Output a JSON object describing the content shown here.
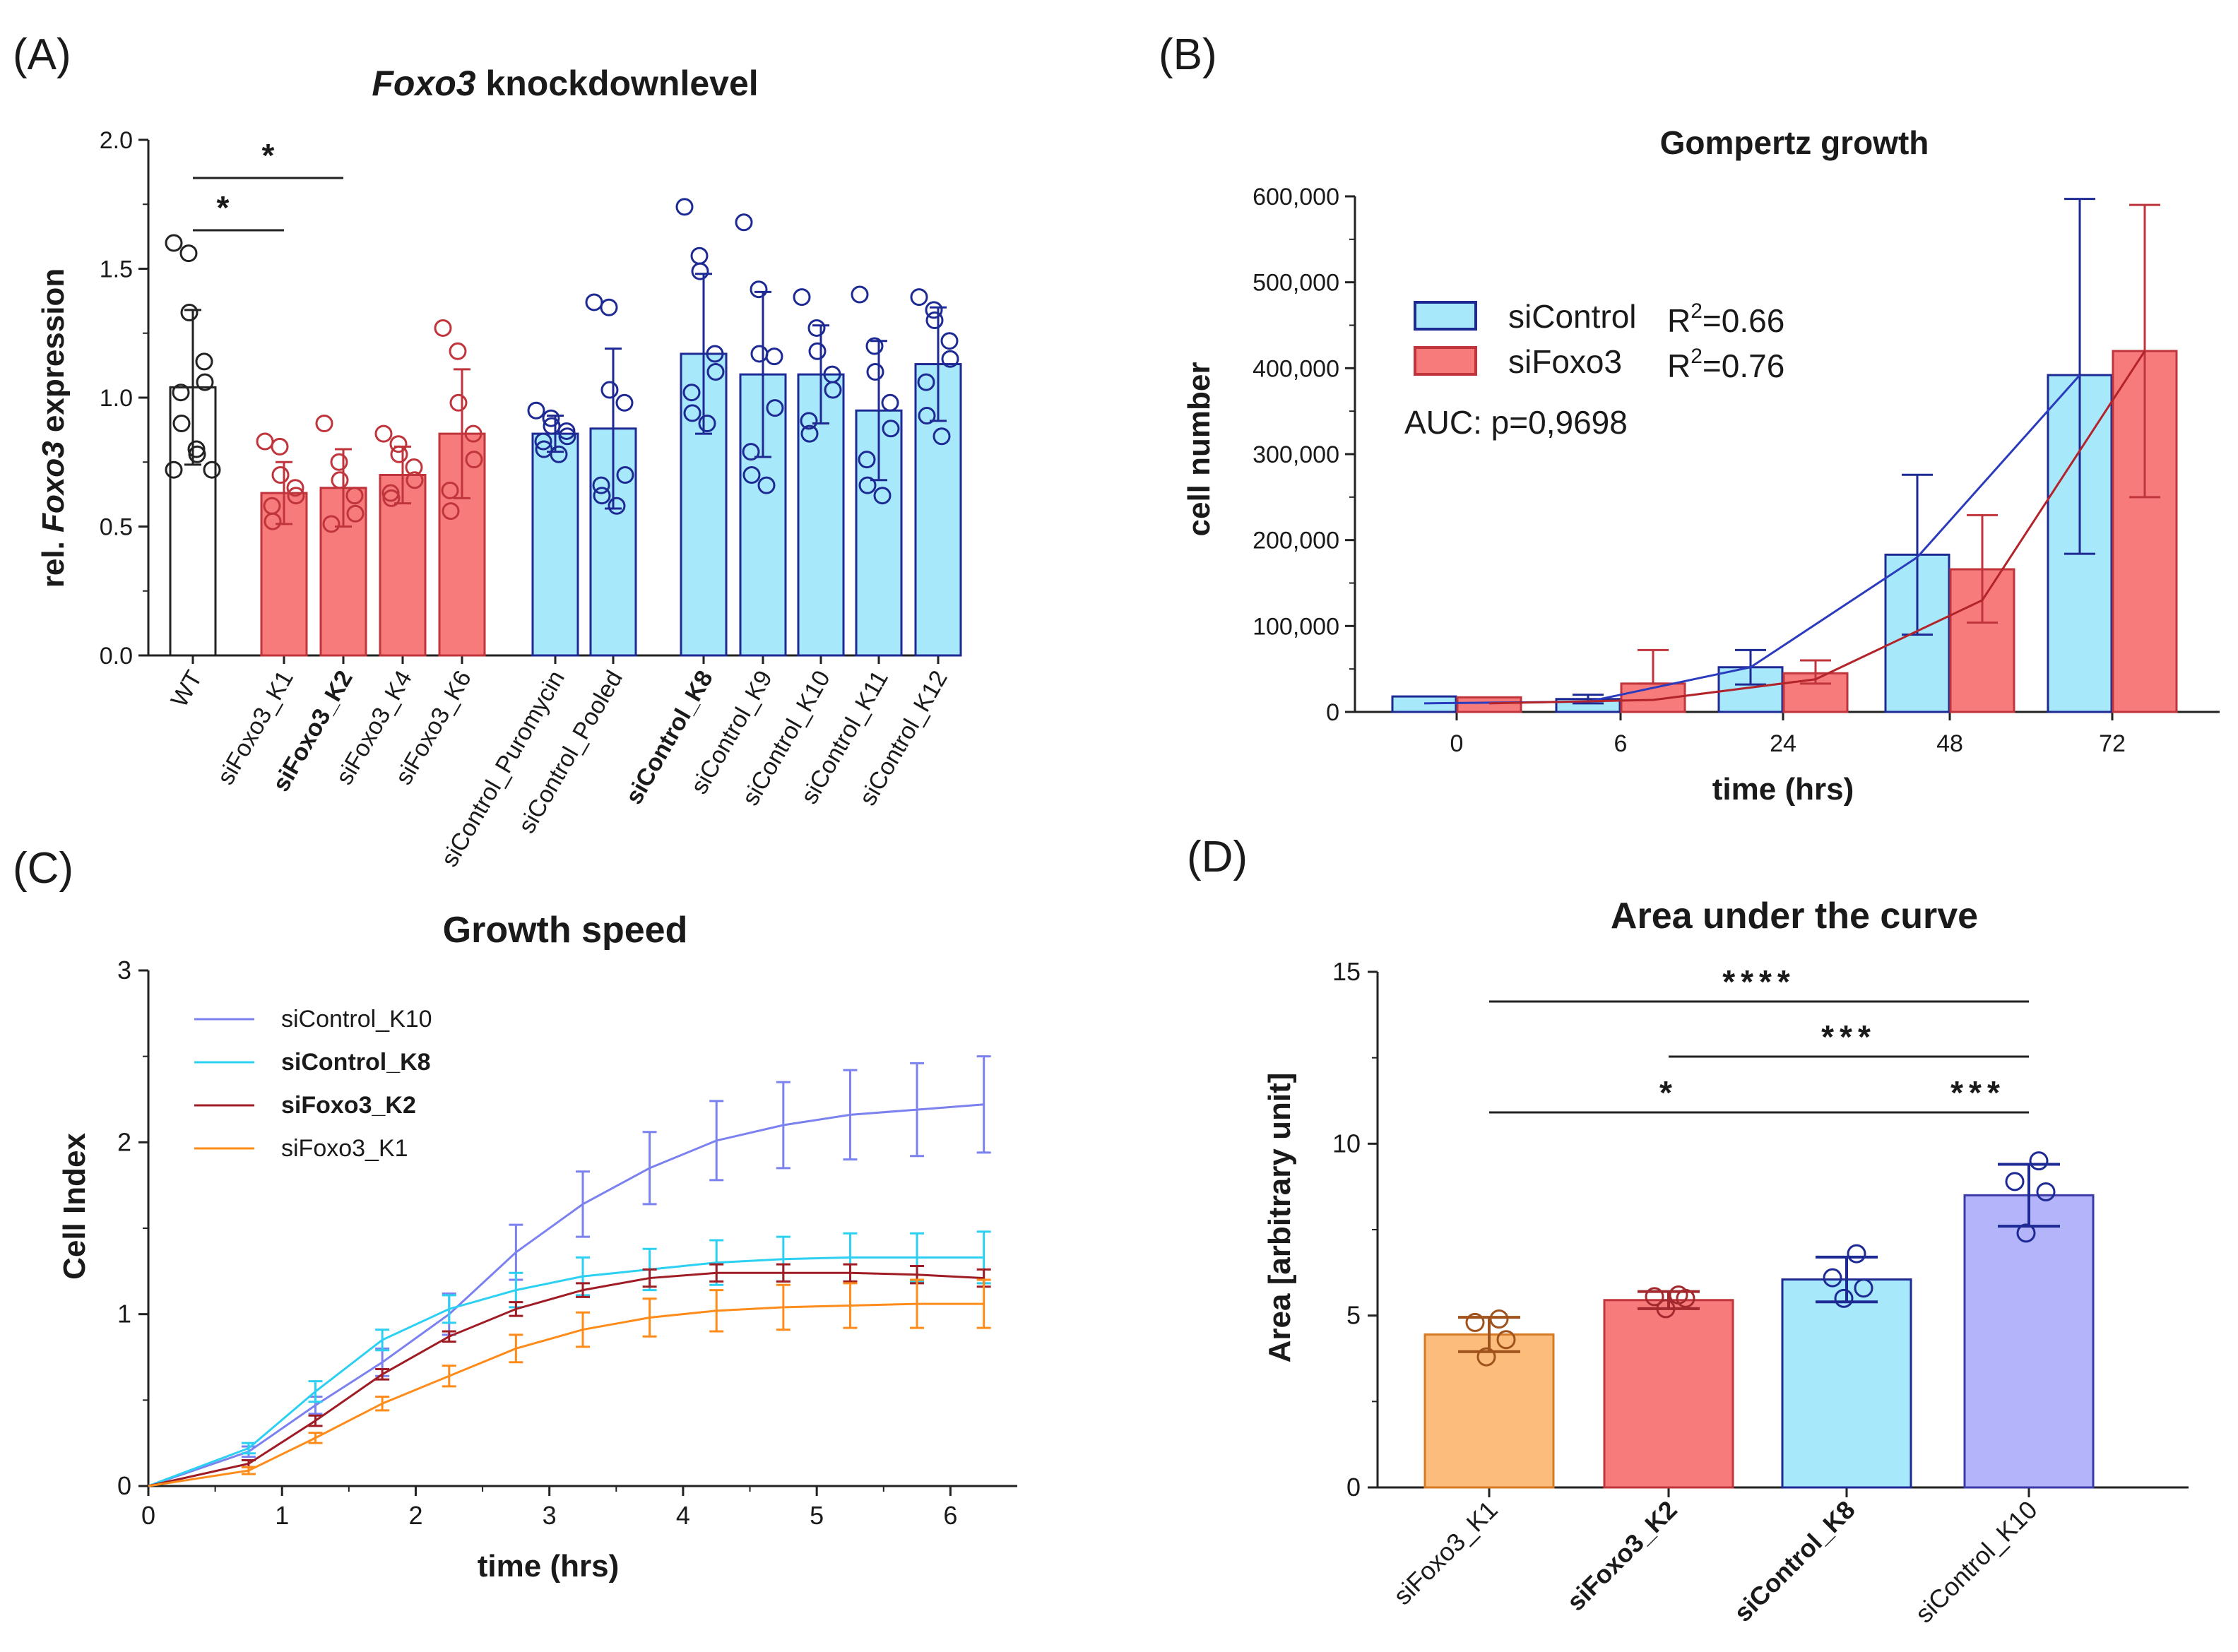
{
  "colors": {
    "white_fill": "#ffffff",
    "red_fill": "#f77b7b",
    "red_edge": "#c0353c",
    "blue_fill": "#a8e8fb",
    "navy": "#1e2a94",
    "orange_fill": "#fbbc7c",
    "orange_edge": "#d87a24",
    "purple_fill": "#b4b4fa",
    "purple_edge": "#3a3aa8",
    "line_k10": "#7b82f0",
    "line_k8": "#2bd0f2",
    "line_k2": "#a01c24",
    "line_k1": "#ff8c1a",
    "curve_ctrl": "#2b3bbd",
    "curve_foxo": "#b3242a"
  },
  "chart_data": [
    {
      "panel": "(A)",
      "type": "bar",
      "title_italic": "Foxo3",
      "title_rest": " knockdownlevel",
      "ylabel_pre": "rel. ",
      "ylabel_italic": "Foxo3",
      "ylabel_post": " expression",
      "ylim": [
        0,
        2
      ],
      "yticks": [
        "0.0",
        "0.5",
        "1.0",
        "1.5",
        "2.0"
      ],
      "categories": [
        "WT",
        "siFoxo3_K1",
        "siFoxo3_K2",
        "siFoxo3_K4",
        "siFoxo3_K6",
        "siControl_Puromycin",
        "siControl_Pooled",
        "siControl_K8",
        "siControl_K9",
        "siControl_K10",
        "siControl_K11",
        "siControl_K12"
      ],
      "bold": [
        false,
        false,
        true,
        false,
        false,
        false,
        false,
        true,
        false,
        false,
        false,
        false
      ],
      "group": [
        "wt",
        "foxo",
        "foxo",
        "foxo",
        "foxo",
        "ctrl",
        "ctrl",
        "ctrl",
        "ctrl",
        "ctrl",
        "ctrl",
        "ctrl"
      ],
      "values": [
        1.04,
        0.63,
        0.65,
        0.7,
        0.86,
        0.86,
        0.88,
        1.17,
        1.09,
        1.09,
        0.95,
        1.13
      ],
      "errors": [
        0.3,
        0.12,
        0.15,
        0.11,
        0.25,
        0.07,
        0.31,
        0.31,
        0.32,
        0.19,
        0.27,
        0.22
      ],
      "points": [
        [
          1.6,
          1.56,
          1.33,
          1.14,
          1.06,
          1.02,
          0.9,
          0.8,
          0.78,
          0.72,
          0.72
        ],
        [
          0.83,
          0.81,
          0.7,
          0.65,
          0.62,
          0.58,
          0.52
        ],
        [
          0.9,
          0.75,
          0.68,
          0.62,
          0.55,
          0.51
        ],
        [
          0.86,
          0.82,
          0.78,
          0.73,
          0.68,
          0.63,
          0.61
        ],
        [
          1.27,
          1.18,
          0.98,
          0.86,
          0.76,
          0.64,
          0.56
        ],
        [
          0.95,
          0.92,
          0.89,
          0.87,
          0.85,
          0.83,
          0.8,
          0.78
        ],
        [
          1.37,
          1.35,
          1.03,
          0.98,
          0.7,
          0.66,
          0.62,
          0.58
        ],
        [
          1.74,
          1.55,
          1.49,
          1.17,
          1.1,
          1.02,
          0.94,
          0.9
        ],
        [
          1.68,
          1.42,
          1.17,
          1.16,
          0.96,
          0.79,
          0.7,
          0.66
        ],
        [
          1.39,
          1.27,
          1.18,
          1.09,
          1.03,
          0.91,
          0.86
        ],
        [
          1.4,
          1.2,
          1.1,
          0.98,
          0.88,
          0.76,
          0.66,
          0.62
        ],
        [
          1.39,
          1.34,
          1.3,
          1.22,
          1.15,
          1.06,
          0.93,
          0.85
        ]
      ],
      "significance": [
        {
          "from": "WT",
          "to": "siFoxo3_K2",
          "label": "*"
        },
        {
          "from": "WT",
          "to": "siFoxo3_K1",
          "label": "*"
        }
      ]
    },
    {
      "panel": "(B)",
      "type": "bar",
      "title": "Gompertz growth",
      "xlabel": "time (hrs)",
      "ylabel": "cell number",
      "ylim": [
        0,
        600000
      ],
      "yticks": [
        "0",
        "100,000",
        "200,000",
        "300,000",
        "400,000",
        "500,000",
        "600,000"
      ],
      "categories": [
        "0",
        "6",
        "24",
        "48",
        "72"
      ],
      "series": [
        {
          "name": "siControl",
          "r2_prefix": "R",
          "r2_sup": "2",
          "r2_value": "=0.66",
          "values": [
            18000,
            15000,
            52000,
            183000,
            392000
          ],
          "err_up": [
            0,
            5000,
            20000,
            93000,
            205000
          ],
          "err_down": [
            0,
            5000,
            20000,
            93000,
            208000
          ],
          "fit": [
            10000,
            12000,
            52000,
            180000,
            392000
          ]
        },
        {
          "name": "siFoxo3",
          "r2_prefix": "R",
          "r2_sup": "2",
          "r2_value": "=0.76",
          "values": [
            17000,
            33000,
            45000,
            166000,
            420000
          ],
          "err_up": [
            0,
            39000,
            15000,
            63000,
            170000
          ],
          "err_down": [
            0,
            0,
            12000,
            62000,
            170000
          ],
          "fit": [
            10000,
            14000,
            38000,
            130000,
            420000
          ]
        }
      ],
      "annotation": "AUC: p=0,9698"
    },
    {
      "panel": "(C)",
      "type": "line",
      "title": "Growth speed",
      "xlabel": "time (hrs)",
      "ylabel": "Cell Index",
      "xlim": [
        0,
        6.5
      ],
      "ylim": [
        0,
        3
      ],
      "xticks": [
        "0",
        "1",
        "2",
        "3",
        "4",
        "5",
        "6"
      ],
      "yticks": [
        "0",
        "1",
        "2",
        "3"
      ],
      "x": [
        0,
        0.75,
        1.25,
        1.75,
        2.25,
        2.75,
        3.25,
        3.75,
        4.25,
        4.75,
        5.25,
        5.75,
        6.25
      ],
      "series": [
        {
          "name": "siControl_K10",
          "bold": false,
          "values": [
            0,
            0.2,
            0.47,
            0.72,
            1.0,
            1.36,
            1.64,
            1.85,
            2.01,
            2.1,
            2.16,
            2.19,
            2.22
          ],
          "errors": [
            0,
            0.03,
            0.05,
            0.08,
            0.12,
            0.16,
            0.19,
            0.21,
            0.23,
            0.25,
            0.26,
            0.27,
            0.28
          ]
        },
        {
          "name": "siControl_K8",
          "bold": true,
          "values": [
            0,
            0.22,
            0.55,
            0.85,
            1.03,
            1.14,
            1.22,
            1.26,
            1.3,
            1.32,
            1.33,
            1.33,
            1.33
          ],
          "errors": [
            0,
            0.03,
            0.06,
            0.06,
            0.08,
            0.1,
            0.11,
            0.12,
            0.13,
            0.13,
            0.14,
            0.14,
            0.15
          ]
        },
        {
          "name": "siFoxo3_K2",
          "bold": true,
          "values": [
            0,
            0.13,
            0.38,
            0.65,
            0.87,
            1.03,
            1.14,
            1.21,
            1.24,
            1.24,
            1.24,
            1.23,
            1.21
          ],
          "errors": [
            0,
            0.02,
            0.03,
            0.03,
            0.03,
            0.04,
            0.04,
            0.05,
            0.05,
            0.05,
            0.05,
            0.05,
            0.05
          ]
        },
        {
          "name": "siFoxo3_K1",
          "bold": false,
          "values": [
            0,
            0.09,
            0.28,
            0.48,
            0.64,
            0.8,
            0.91,
            0.98,
            1.02,
            1.04,
            1.05,
            1.06,
            1.06
          ],
          "errors": [
            0,
            0.02,
            0.03,
            0.04,
            0.06,
            0.08,
            0.1,
            0.11,
            0.12,
            0.13,
            0.13,
            0.14,
            0.14
          ]
        }
      ]
    },
    {
      "panel": "(D)",
      "type": "bar",
      "title": "Area under the curve",
      "ylabel": "Area [arbitrary unit]",
      "ylim": [
        0,
        15
      ],
      "yticks": [
        "0",
        "5",
        "10",
        "15"
      ],
      "categories": [
        "siFoxo3_K1",
        "siFoxo3_K2",
        "siControl_K8",
        "siControl_K10"
      ],
      "bold": [
        false,
        true,
        true,
        false
      ],
      "values": [
        4.45,
        5.45,
        6.05,
        8.5
      ],
      "errors": [
        0.5,
        0.25,
        0.65,
        0.9
      ],
      "points": [
        [
          4.9,
          4.8,
          4.3,
          3.8
        ],
        [
          5.6,
          5.55,
          5.5,
          5.2
        ],
        [
          6.8,
          6.1,
          5.8,
          5.5
        ],
        [
          9.5,
          8.9,
          8.6,
          7.4
        ]
      ],
      "significance": [
        {
          "from": "siFoxo3_K1",
          "to": "siControl_K10",
          "label": "****"
        },
        {
          "from": "siFoxo3_K2",
          "to": "siControl_K10",
          "label": "***"
        },
        {
          "from": "siFoxo3_K1",
          "to": "siControl_K10",
          "label": "*",
          "label2": "***"
        }
      ]
    }
  ]
}
